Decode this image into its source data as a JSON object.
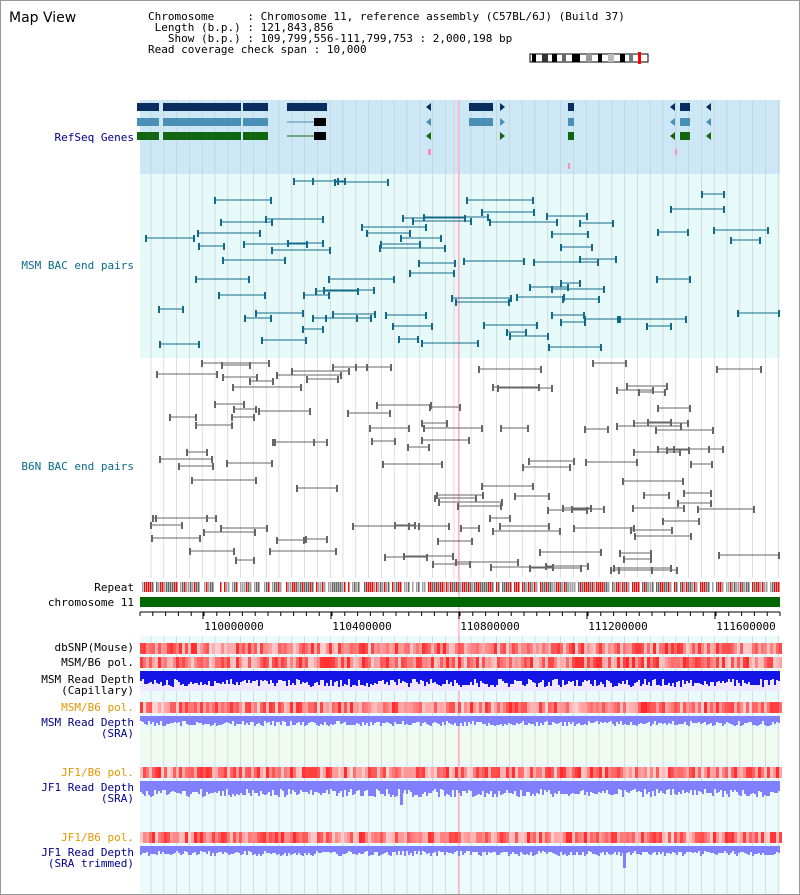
{
  "page": {
    "title": "Map View",
    "info": {
      "chromosome_key": "Chromosome",
      "chromosome_val": "Chromosome 11, reference assembly (C57BL/6J) (Build 37)",
      "length_key": "Length (b.p.)",
      "length_val": "121,843,856",
      "show_key": "Show (b.p.)",
      "show_val": "109,799,556-111,799,753 : 2,000,198 bp",
      "span_key": "Read coverage check span",
      "span_val": "10,000"
    }
  },
  "tracks": {
    "refseq": "RefSeq Genes",
    "msm_bac": "MSM BAC end pairs",
    "b6n_bac": "B6N BAC end pairs",
    "repeat": "Repeat",
    "chromosome": "chromosome 11",
    "dbsnp": "dbSNP(Mouse)",
    "msm_pol": "MSM/B6 pol.",
    "msm_depth_cap": "MSM Read Depth\n(Capillary)",
    "msm_pol2": "MSM/B6 pol.",
    "msm_depth_sra": "MSM Read Depth\n(SRA)",
    "jf1_pol": "JF1/B6 pol.",
    "jf1_depth_sra": "JF1 Read Depth\n(SRA)",
    "jf1_pol2": "JF1/B6 pol.",
    "jf1_depth_trim": "JF1 Read Depth\n(SRA trimmed)"
  },
  "axis": {
    "ticks": [
      "110000000",
      "110400000",
      "110800000",
      "111200000",
      "111600000"
    ]
  },
  "colors": {
    "refseq_bg": "#cce8f6",
    "msm_bg": "#e6fafa",
    "grid": "#c8c8c8",
    "gene_dark": "#0a2d5f",
    "gene_mid": "#4a8fb6",
    "gene_green": "#116611",
    "msm_pair": "#116a8a",
    "b6n_pair": "#666666",
    "chromosome_bar": "#006600",
    "highlight": "#ffb6c8",
    "label_blue": "#00008b",
    "label_teal": "#0a6a8a",
    "label_orange": "#e69600",
    "label_black": "#000000",
    "polymorphism_red": "#ff2a2a",
    "depth_blue": "#1414e6",
    "depth_sra": "#8080ff"
  }
}
